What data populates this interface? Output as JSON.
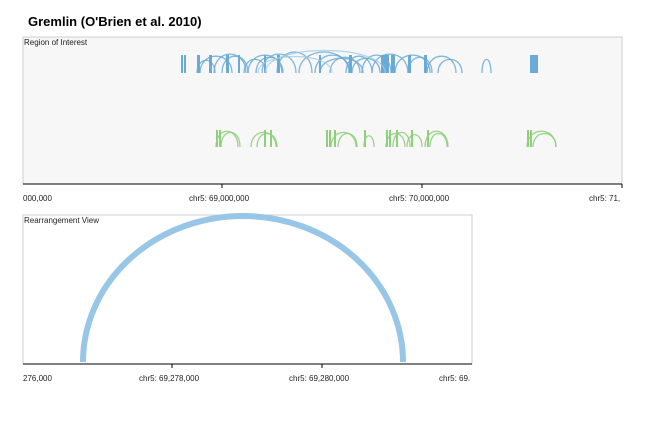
{
  "title": "Gremlin (O'Brien et al. 2010)",
  "roi": {
    "label": "Region of Interest",
    "ticks": [
      "000,000",
      "chr5: 69,000,000",
      "chr5: 70,000,000",
      "chr5: 71,"
    ]
  },
  "rearr": {
    "label": "Rearrangement View",
    "ticks": [
      "276,000",
      "chr5: 69,278,000",
      "chr5: 69,280,000",
      "chr5: 69."
    ]
  },
  "colors": {
    "blue": "#6aaad6",
    "blue_light": "#9ecae8",
    "green": "#8fcf7c",
    "panel_bg": "#f7f7f7",
    "border": "#bdbdbd"
  }
}
